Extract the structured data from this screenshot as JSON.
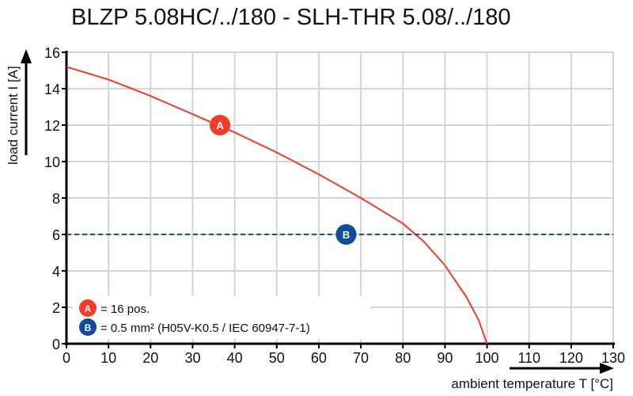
{
  "chart_data": {
    "type": "line",
    "title": "BLZP 5.08HC/../180 - SLH-THR 5.08/../180",
    "xlabel": "ambient temperature T [°C]",
    "ylabel": "load current I [A]",
    "xlim": [
      0,
      130
    ],
    "ylim": [
      0,
      16
    ],
    "xticks": [
      0,
      10,
      20,
      30,
      40,
      50,
      60,
      70,
      80,
      90,
      100,
      110,
      120,
      130
    ],
    "yticks": [
      0,
      2,
      4,
      6,
      8,
      10,
      12,
      14,
      16
    ],
    "grid": true,
    "series": [
      {
        "marker_label": "A",
        "color": "#f03c28",
        "style": "solid",
        "x": [
          0,
          10,
          20,
          30,
          40,
          50,
          60,
          70,
          80,
          85,
          90,
          95,
          98,
          100
        ],
        "y": [
          15.2,
          14.5,
          13.6,
          12.6,
          11.6,
          10.5,
          9.3,
          8.0,
          6.6,
          5.6,
          4.3,
          2.6,
          1.3,
          0
        ]
      },
      {
        "marker_label": "B",
        "color": "#1a4fa0",
        "style": "dashed",
        "x": [
          0,
          130
        ],
        "y": [
          6,
          6
        ]
      }
    ],
    "markers": [
      {
        "label": "A",
        "x": 36.5,
        "y": 12,
        "color": "#f03c28"
      },
      {
        "label": "B",
        "x": 66.5,
        "y": 6,
        "color": "#0f4c9a"
      }
    ],
    "legend": {
      "placement": "bottom-left",
      "entries": [
        {
          "label": "A",
          "text": "= 16 pos.",
          "color": "#f03c28"
        },
        {
          "label": "B",
          "text": "= 0.5 mm² (H05V-K0.5 / IEC 60947-7-1)",
          "color": "#0f4c9a"
        }
      ]
    }
  }
}
